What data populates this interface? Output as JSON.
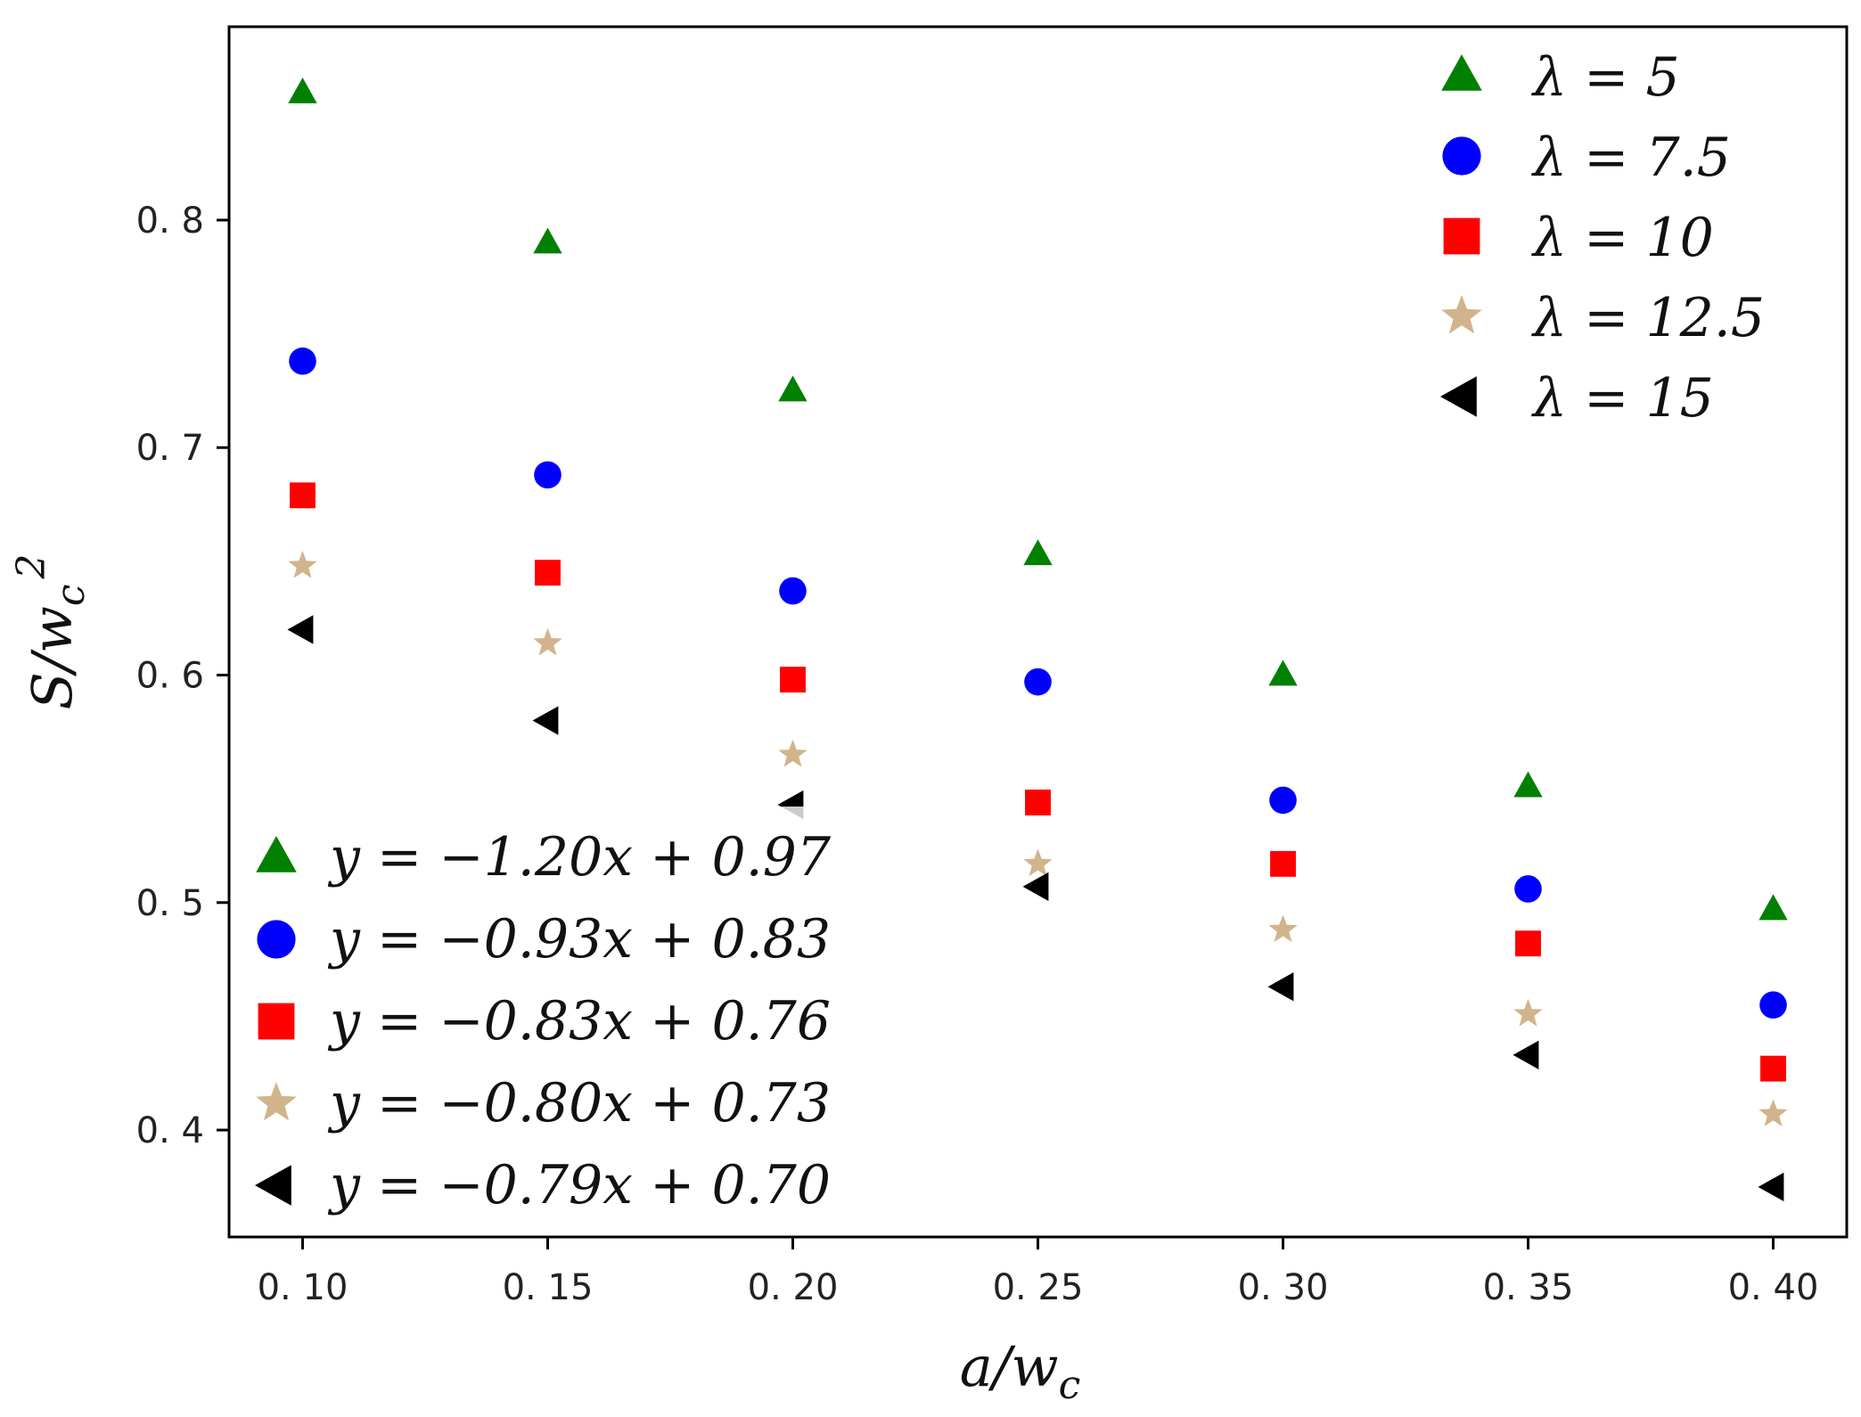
{
  "chart_data": {
    "type": "scatter",
    "title": "",
    "xlabel": "a/w_c",
    "ylabel": "S/w_c^2",
    "xlabel_parts": {
      "base": "a/w",
      "sub": "c"
    },
    "ylabel_parts": {
      "base": "S/w",
      "sub": "c",
      "sup": "2"
    },
    "x": [
      0.1,
      0.15,
      0.2,
      0.25,
      0.3,
      0.35,
      0.4
    ],
    "xticks": [
      "0. 10",
      "0. 15",
      "0. 20",
      "0. 25",
      "0. 30",
      "0. 35",
      "0. 40"
    ],
    "yticks": [
      "0. 4",
      "0. 5",
      "0. 6",
      "0. 7",
      "0. 8"
    ],
    "ytick_values": [
      0.4,
      0.5,
      0.6,
      0.7,
      0.8
    ],
    "xlim": [
      0.085,
      0.415
    ],
    "ylim": [
      0.353,
      0.885
    ],
    "grid": false,
    "series": [
      {
        "name": "λ = 5",
        "marker": "triangle-up",
        "color": "#008000",
        "fit": "y = −1.20x + 0.97",
        "values": [
          0.856,
          0.79,
          0.725,
          0.653,
          0.6,
          0.551,
          0.497
        ]
      },
      {
        "name": "λ = 7.5",
        "marker": "circle",
        "color": "#0000ff",
        "fit": "y = −0.93x + 0.83",
        "values": [
          0.738,
          0.688,
          0.637,
          0.597,
          0.545,
          0.506,
          0.455
        ]
      },
      {
        "name": "λ = 10",
        "marker": "square",
        "color": "#ff0000",
        "fit": "y = −0.83x + 0.76",
        "values": [
          0.679,
          0.645,
          0.598,
          0.544,
          0.517,
          0.482,
          0.427
        ]
      },
      {
        "name": "λ = 12.5",
        "marker": "star",
        "color": "#d2b48c",
        "fit": "y = −0.80x + 0.73",
        "values": [
          0.648,
          0.614,
          0.565,
          0.517,
          0.488,
          0.451,
          0.407
        ]
      },
      {
        "name": "λ = 15",
        "marker": "triangle-left",
        "color": "#000000",
        "fit": "y = −0.79x + 0.70",
        "values": [
          0.62,
          0.58,
          0.543,
          0.507,
          0.463,
          0.433,
          0.375
        ]
      }
    ],
    "legend_top_right": [
      "λ = 5",
      "λ = 7.5",
      "λ = 10",
      "λ = 12.5",
      "λ = 15"
    ],
    "legend_bottom_left": [
      "y = −1.20x + 0.97",
      "y = −0.93x + 0.83",
      "y = −0.83x + 0.76",
      "y = −0.80x + 0.73",
      "y = −0.79x + 0.70"
    ]
  }
}
